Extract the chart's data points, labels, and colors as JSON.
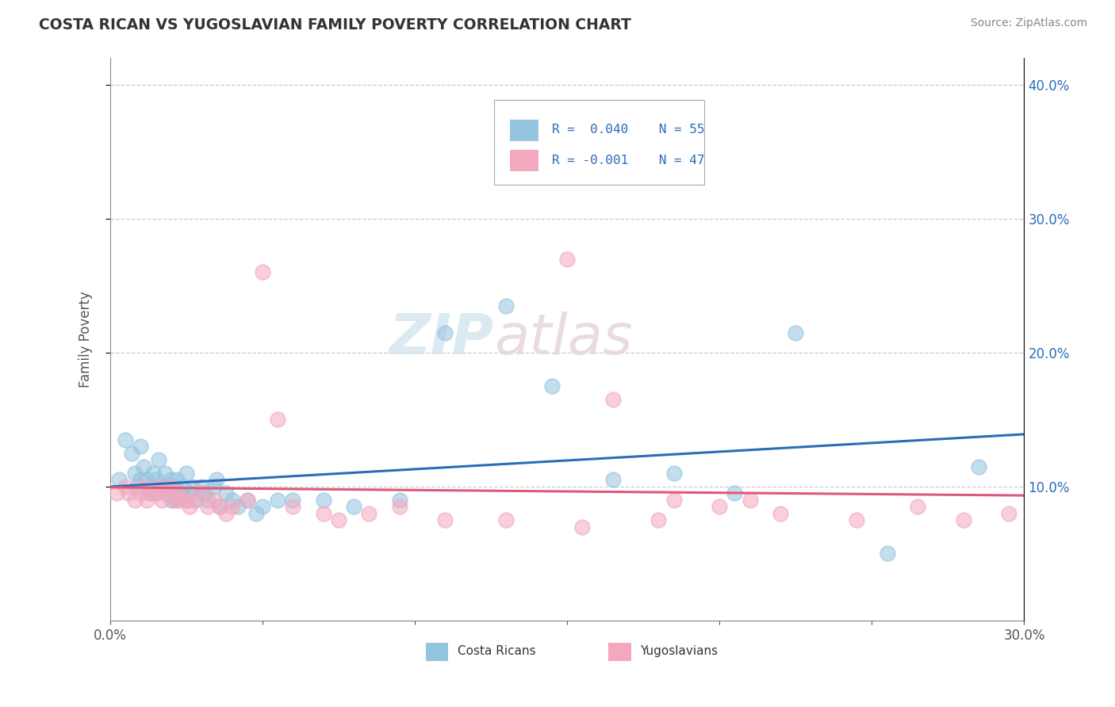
{
  "title": "COSTA RICAN VS YUGOSLAVIAN FAMILY POVERTY CORRELATION CHART",
  "source": "Source: ZipAtlas.com",
  "ylabel": "Family Poverty",
  "xlim": [
    0.0,
    0.3
  ],
  "ylim": [
    0.0,
    0.42
  ],
  "xticks": [
    0.0,
    0.05,
    0.1,
    0.15,
    0.2,
    0.25,
    0.3
  ],
  "xticklabels": [
    "0.0%",
    "",
    "",
    "",
    "",
    "",
    "30.0%"
  ],
  "ytick_right_labels": [
    "10.0%",
    "20.0%",
    "30.0%",
    "40.0%"
  ],
  "color_blue": "#94c4e0",
  "color_pink": "#f4a8be",
  "line_blue": "#2b6cb8",
  "line_pink": "#e05878",
  "cr_x": [
    0.003,
    0.005,
    0.007,
    0.008,
    0.009,
    0.01,
    0.01,
    0.011,
    0.012,
    0.013,
    0.014,
    0.015,
    0.015,
    0.016,
    0.017,
    0.018,
    0.019,
    0.02,
    0.02,
    0.021,
    0.022,
    0.022,
    0.023,
    0.024,
    0.025,
    0.025,
    0.026,
    0.027,
    0.028,
    0.03,
    0.031,
    0.032,
    0.034,
    0.035,
    0.036,
    0.038,
    0.04,
    0.042,
    0.045,
    0.048,
    0.05,
    0.055,
    0.06,
    0.07,
    0.08,
    0.095,
    0.11,
    0.13,
    0.145,
    0.165,
    0.185,
    0.205,
    0.225,
    0.255,
    0.285
  ],
  "cr_y": [
    0.105,
    0.135,
    0.125,
    0.11,
    0.1,
    0.13,
    0.105,
    0.115,
    0.105,
    0.095,
    0.11,
    0.105,
    0.095,
    0.12,
    0.1,
    0.11,
    0.095,
    0.105,
    0.09,
    0.1,
    0.105,
    0.09,
    0.095,
    0.1,
    0.11,
    0.09,
    0.095,
    0.1,
    0.09,
    0.1,
    0.095,
    0.09,
    0.1,
    0.105,
    0.085,
    0.095,
    0.09,
    0.085,
    0.09,
    0.08,
    0.085,
    0.09,
    0.09,
    0.09,
    0.085,
    0.09,
    0.215,
    0.235,
    0.175,
    0.105,
    0.11,
    0.095,
    0.215,
    0.05,
    0.115
  ],
  "yu_x": [
    0.002,
    0.005,
    0.006,
    0.008,
    0.01,
    0.011,
    0.012,
    0.013,
    0.015,
    0.016,
    0.017,
    0.018,
    0.02,
    0.021,
    0.022,
    0.023,
    0.025,
    0.026,
    0.028,
    0.03,
    0.032,
    0.034,
    0.036,
    0.038,
    0.04,
    0.045,
    0.05,
    0.055,
    0.06,
    0.07,
    0.075,
    0.085,
    0.095,
    0.11,
    0.13,
    0.155,
    0.18,
    0.2,
    0.22,
    0.245,
    0.265,
    0.28,
    0.295,
    0.15,
    0.165,
    0.185,
    0.21
  ],
  "yu_y": [
    0.095,
    0.1,
    0.095,
    0.09,
    0.095,
    0.1,
    0.09,
    0.095,
    0.095,
    0.1,
    0.09,
    0.095,
    0.1,
    0.09,
    0.095,
    0.09,
    0.09,
    0.085,
    0.09,
    0.095,
    0.085,
    0.09,
    0.085,
    0.08,
    0.085,
    0.09,
    0.26,
    0.15,
    0.085,
    0.08,
    0.075,
    0.08,
    0.085,
    0.075,
    0.075,
    0.07,
    0.075,
    0.085,
    0.08,
    0.075,
    0.085,
    0.075,
    0.08,
    0.27,
    0.165,
    0.09,
    0.09
  ]
}
